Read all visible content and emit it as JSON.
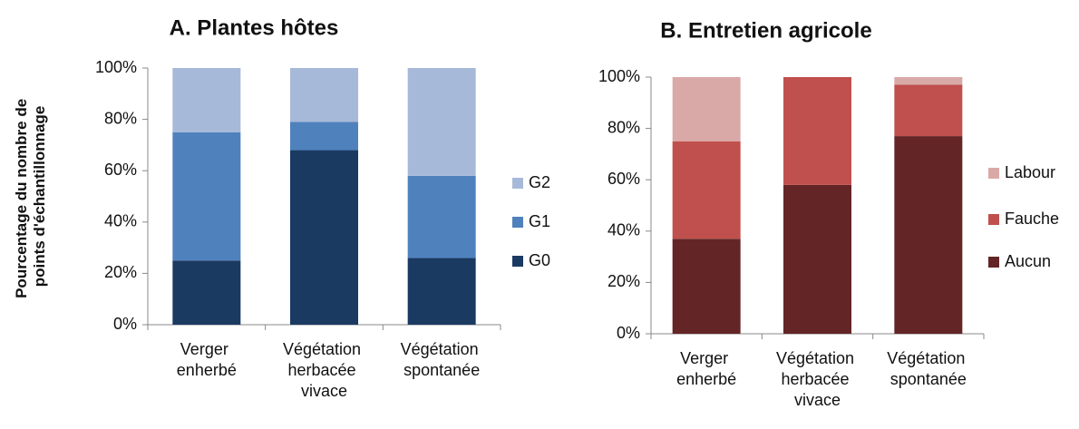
{
  "chart_data": [
    {
      "type": "bar",
      "stacked": true,
      "title": "A. Plantes hôtes",
      "y_label": "Pourcentage du nombre de points d'échantillonnage",
      "categories": [
        "Verger enherbé",
        "Végétation herbacée vivace",
        "Végétation spontanée"
      ],
      "series": [
        {
          "name": "G0",
          "color": "#1a3a62",
          "values": [
            25,
            68,
            26
          ]
        },
        {
          "name": "G1",
          "color": "#4f81bd",
          "values": [
            50,
            11,
            32
          ]
        },
        {
          "name": "G2",
          "color": "#a7b9d8",
          "values": [
            25,
            21,
            42
          ]
        }
      ],
      "ylim": [
        0,
        100
      ],
      "yticks": [
        {
          "value": 0,
          "label": "0%"
        },
        {
          "value": 20,
          "label": "20%"
        },
        {
          "value": 40,
          "label": "40%"
        },
        {
          "value": 60,
          "label": "60%"
        },
        {
          "value": 80,
          "label": "80%"
        },
        {
          "value": 100,
          "label": "100%"
        }
      ],
      "grid": false,
      "legend": "right"
    },
    {
      "type": "bar",
      "stacked": true,
      "title": "B.  Entretien agricole",
      "categories": [
        "Verger enherbé",
        "Végétation herbacée vivace",
        "Végétation spontanée"
      ],
      "series": [
        {
          "name": "Aucun",
          "color": "#632526",
          "values": [
            37,
            58,
            77
          ]
        },
        {
          "name": "Fauche",
          "color": "#c0504d",
          "values": [
            38,
            42,
            20
          ]
        },
        {
          "name": "Labour",
          "color": "#d9a9a8",
          "values": [
            25,
            0,
            3
          ]
        }
      ],
      "ylim": [
        0,
        100
      ],
      "yticks": [
        {
          "value": 0,
          "label": "0%"
        },
        {
          "value": 20,
          "label": "20%"
        },
        {
          "value": 40,
          "label": "40%"
        },
        {
          "value": 60,
          "label": "60%"
        },
        {
          "value": 80,
          "label": "80%"
        },
        {
          "value": 100,
          "label": "100%"
        }
      ],
      "grid": false,
      "legend": "right"
    }
  ]
}
